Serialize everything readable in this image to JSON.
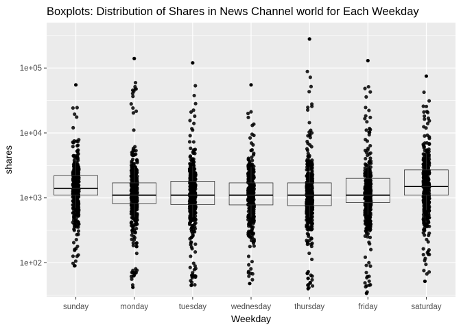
{
  "chart_data": {
    "type": "boxplot",
    "title": "Boxplots: Distribution of Shares in News Channel world for Each Weekday",
    "xlabel": "Weekday",
    "ylabel": "shares",
    "yscale": "log10",
    "ylim": [
      30,
      500000
    ],
    "yticks": [
      {
        "value": 100,
        "label": "1e+02"
      },
      {
        "value": 1000,
        "label": "1e+03"
      },
      {
        "value": 10000,
        "label": "1e+04"
      },
      {
        "value": 100000,
        "label": "1e+05"
      }
    ],
    "grid": true,
    "legend": "none",
    "categories": [
      "sunday",
      "monday",
      "tuesday",
      "wednesday",
      "thursday",
      "friday",
      "saturday"
    ],
    "boxes": [
      {
        "category": "sunday",
        "q1": 1100,
        "median": 1400,
        "q3": 2200,
        "whisker_low": 700,
        "whisker_high": 3800,
        "min": 90,
        "max": 55000
      },
      {
        "category": "monday",
        "q1": 820,
        "median": 1100,
        "q3": 1700,
        "whisker_low": 500,
        "whisker_high": 3000,
        "min": 42,
        "max": 140000
      },
      {
        "category": "tuesday",
        "q1": 790,
        "median": 1100,
        "q3": 1800,
        "whisker_low": 500,
        "whisker_high": 3100,
        "min": 45,
        "max": 120000
      },
      {
        "category": "wednesday",
        "q1": 780,
        "median": 1100,
        "q3": 1700,
        "whisker_low": 500,
        "whisker_high": 3000,
        "min": 48,
        "max": 55000
      },
      {
        "category": "thursday",
        "q1": 760,
        "median": 1100,
        "q3": 1700,
        "whisker_low": 500,
        "whisker_high": 3000,
        "min": 40,
        "max": 280000
      },
      {
        "category": "friday",
        "q1": 850,
        "median": 1100,
        "q3": 2000,
        "whisker_low": 550,
        "whisker_high": 3500,
        "min": 34,
        "max": 130000
      },
      {
        "category": "saturday",
        "q1": 1100,
        "median": 1500,
        "q3": 2700,
        "whisker_low": 650,
        "whisker_high": 4800,
        "min": 52,
        "max": 75000
      }
    ],
    "point_color": "#000000",
    "panel_background": "#ebebeb",
    "grid_color": "#ffffff"
  }
}
